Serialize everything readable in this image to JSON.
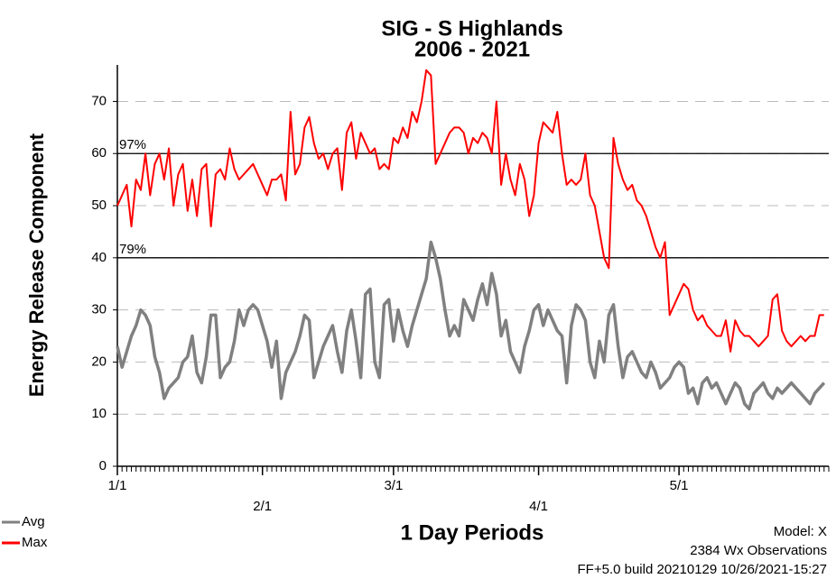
{
  "chart_data": {
    "type": "line",
    "title": "SIG - S Highlands",
    "subtitle": "2006 - 2021",
    "x_label": "1 Day Periods",
    "y_label": "Energy Release Component",
    "notes": [
      "Model: X",
      "2384 Wx Observations",
      "FF+5.0 build 20210129 10/26/2021-15:27"
    ],
    "x": [
      0,
      1,
      2,
      3,
      4,
      5,
      6,
      7,
      8,
      9,
      10,
      11,
      12,
      13,
      14,
      15,
      16,
      17,
      18,
      19,
      20,
      21,
      22,
      23,
      24,
      25,
      26,
      27,
      28,
      29,
      30,
      31,
      32,
      33,
      34,
      35,
      36,
      37,
      38,
      39,
      40,
      41,
      42,
      43,
      44,
      45,
      46,
      47,
      48,
      49,
      50,
      51,
      52,
      53,
      54,
      55,
      56,
      57,
      58,
      59,
      60,
      61,
      62,
      63,
      64,
      65,
      66,
      67,
      68,
      69,
      70,
      71,
      72,
      73,
      74,
      75,
      76,
      77,
      78,
      79,
      80,
      81,
      82,
      83,
      84,
      85,
      86,
      87,
      88,
      89,
      90,
      91,
      92,
      93,
      94,
      95,
      96,
      97,
      98,
      99,
      100,
      101,
      102,
      103,
      104,
      105,
      106,
      107,
      108,
      109,
      110,
      111,
      112,
      113,
      114,
      115,
      116,
      117,
      118,
      119,
      120,
      121,
      122,
      123,
      124,
      125,
      126,
      127,
      128,
      129,
      130,
      131,
      132,
      133,
      134,
      135,
      136,
      137,
      138,
      139,
      140,
      141,
      142,
      143,
      144,
      145,
      146,
      147,
      148,
      149,
      150,
      151
    ],
    "xlim": [
      0,
      152
    ],
    "xticks": [
      {
        "value": 0,
        "label": "1/1"
      },
      {
        "value": 31,
        "label": "2/1"
      },
      {
        "value": 59,
        "label": "3/1"
      },
      {
        "value": 90,
        "label": "4/1"
      },
      {
        "value": 120,
        "label": "5/1"
      }
    ],
    "ylim": [
      0,
      77
    ],
    "yticks": [
      0,
      10,
      20,
      30,
      40,
      50,
      60,
      70
    ],
    "grid": true,
    "percentile_lines": [
      {
        "value": 60,
        "label": "97%"
      },
      {
        "value": 40,
        "label": "79%"
      }
    ],
    "series": [
      {
        "name": "Avg",
        "color": "#808080",
        "values": [
          23,
          19,
          22,
          25,
          27,
          30,
          29,
          27,
          21,
          18,
          13,
          15,
          16,
          17,
          20,
          21,
          25,
          18,
          16,
          21,
          29,
          29,
          17,
          19,
          20,
          24,
          30,
          27,
          30,
          31,
          30,
          27,
          24,
          19,
          24,
          13,
          18,
          20,
          22,
          25,
          29,
          28,
          17,
          20,
          23,
          25,
          27,
          22,
          18,
          26,
          30,
          24,
          17,
          33,
          34,
          20,
          17,
          31,
          32,
          24,
          30,
          26,
          23,
          27,
          30,
          33,
          36,
          43,
          40,
          36,
          30,
          25,
          27,
          25,
          32,
          30,
          28,
          32,
          35,
          31,
          37,
          33,
          25,
          28,
          22,
          20,
          18,
          23,
          26,
          30,
          31,
          27,
          30,
          28,
          26,
          25,
          16,
          27,
          31,
          30,
          28,
          20,
          17,
          24,
          20,
          29,
          31,
          23,
          17,
          21,
          22,
          20,
          18,
          17,
          20,
          18,
          15,
          16,
          17,
          19,
          20,
          19,
          14,
          15,
          12,
          16,
          17,
          15,
          16,
          14,
          12,
          14,
          16,
          15,
          12,
          11,
          14,
          15,
          16,
          14,
          13,
          15,
          14,
          15,
          16,
          15,
          14,
          13,
          12,
          14,
          15,
          16
        ]
      },
      {
        "name": "Max",
        "color": "#ff0000",
        "values": [
          50,
          52,
          54,
          46,
          55,
          53,
          60,
          52,
          58,
          60,
          55,
          61,
          50,
          56,
          58,
          49,
          55,
          48,
          57,
          58,
          46,
          56,
          57,
          55,
          61,
          57,
          55,
          56,
          57,
          58,
          56,
          54,
          52,
          55,
          55,
          56,
          51,
          68,
          56,
          58,
          65,
          67,
          62,
          59,
          60,
          57,
          60,
          61,
          53,
          64,
          66,
          59,
          64,
          62,
          60,
          61,
          57,
          58,
          57,
          63,
          62,
          65,
          63,
          68,
          66,
          70,
          76,
          75,
          58,
          60,
          62,
          64,
          65,
          65,
          64,
          60,
          63,
          62,
          64,
          63,
          60,
          70,
          54,
          60,
          55,
          52,
          58,
          55,
          48,
          52,
          62,
          66,
          65,
          64,
          68,
          60,
          54,
          55,
          54,
          55,
          60,
          52,
          50,
          45,
          40,
          38,
          63,
          58,
          55,
          53,
          54,
          51,
          50,
          48,
          45,
          42,
          40,
          43,
          29,
          31,
          33,
          35,
          34,
          30,
          28,
          29,
          27,
          26,
          25,
          25,
          28,
          22,
          28,
          26,
          25,
          25,
          24,
          23,
          24,
          25,
          32,
          33,
          26,
          24,
          23,
          24,
          25,
          24,
          25,
          25,
          29,
          29
        ]
      }
    ]
  }
}
